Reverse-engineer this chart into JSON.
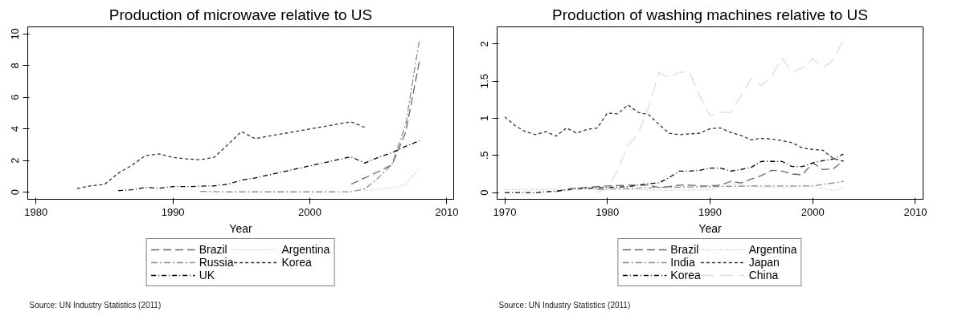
{
  "chart_data": [
    {
      "type": "line",
      "title": "Production of microwave relative to US",
      "xlabel": "Year",
      "annotations": [
        "Source: UN Industry Statistics (2011)"
      ],
      "legend": "bottom",
      "grid": false,
      "marker": "none",
      "xlim": [
        1979.4,
        2010.5
      ],
      "xticks": [
        1980,
        1990,
        2000,
        2010
      ],
      "ylim": [
        -0.45,
        10.45
      ],
      "yticks": [
        0,
        2,
        4,
        6,
        8,
        10
      ],
      "series": [
        {
          "name": "Brazil",
          "color": "#666666",
          "line_style": "dashed",
          "x": [
            2003,
            2004,
            2005,
            2006,
            2007,
            2008
          ],
          "values": [
            0.5,
            0.9,
            1.3,
            1.74,
            3.8,
            8.3
          ]
        },
        {
          "name": "Russia",
          "color": "#8c8c8c",
          "line_style": "dashdot",
          "x": [
            1992,
            1994,
            1996,
            1998,
            2000,
            2002,
            2003,
            2004,
            2005,
            2006,
            2007,
            2008
          ],
          "values": [
            0.05,
            0.02,
            0.02,
            0.02,
            0.02,
            0.02,
            0.03,
            0.2,
            0.9,
            1.78,
            4.3,
            9.66
          ]
        },
        {
          "name": "UK",
          "color": "#000000",
          "line_style": "dashdotdot",
          "x": [
            1986,
            1987,
            1988,
            1989,
            1990,
            1991,
            1992,
            1993,
            1994,
            1995,
            1996,
            2003,
            2004,
            2005,
            2006,
            2007,
            2008
          ],
          "values": [
            0.1,
            0.15,
            0.3,
            0.25,
            0.35,
            0.35,
            0.38,
            0.4,
            0.5,
            0.76,
            0.9,
            2.24,
            1.84,
            2.2,
            2.5,
            2.9,
            3.25
          ]
        },
        {
          "name": "Argentina",
          "color": "#c0c0c0",
          "line_style": "dotted",
          "x": [
            2004,
            2005,
            2006,
            2007,
            2008
          ],
          "values": [
            0.1,
            0.2,
            0.25,
            0.5,
            1.5
          ]
        },
        {
          "name": "Korea",
          "color": "#333333",
          "line_style": "shortdash",
          "x": [
            1983,
            1984,
            1985,
            1986,
            1987,
            1988,
            1989,
            1990,
            1991,
            1992,
            1993,
            1994,
            1995,
            1996,
            2003,
            2004
          ],
          "values": [
            0.23,
            0.4,
            0.49,
            1.19,
            1.7,
            2.31,
            2.42,
            2.2,
            2.1,
            2.05,
            2.2,
            3.0,
            3.83,
            3.39,
            4.45,
            4.1
          ]
        }
      ]
    },
    {
      "type": "line",
      "title": "Production of washing machines relative to US",
      "xlabel": "Year",
      "annotations": [
        "Source: UN Industry Statistics (2011)"
      ],
      "legend": "bottom",
      "grid": false,
      "marker": "none",
      "xlim": [
        1969.25,
        2010.75
      ],
      "xticks": [
        1970,
        1980,
        1990,
        2000,
        2010
      ],
      "ylim": [
        -0.09,
        2.23
      ],
      "yticks": [
        0,
        {
          "value": 0.5,
          "label": ".5"
        },
        1,
        1.5,
        2
      ],
      "series": [
        {
          "name": "Brazil",
          "color": "#666666",
          "line_style": "dashed",
          "x": [
            1975,
            1976,
            1978,
            1980,
            1982,
            1984,
            1985,
            1986,
            1987,
            1988,
            1989,
            1990,
            1991,
            1992,
            1993,
            1994,
            1995,
            1996,
            1997,
            1998,
            1999,
            2000,
            2001,
            2002,
            2003
          ],
          "values": [
            0.01,
            0.05,
            0.07,
            0.09,
            0.1,
            0.1,
            0.07,
            0.08,
            0.1,
            0.1,
            0.09,
            0.09,
            0.1,
            0.15,
            0.13,
            0.18,
            0.23,
            0.3,
            0.29,
            0.25,
            0.24,
            0.4,
            0.31,
            0.32,
            0.43
          ]
        },
        {
          "name": "India",
          "color": "#8c8c8c",
          "line_style": "dashdot",
          "x": [
            1979,
            1985,
            1990,
            1995,
            2000,
            2003
          ],
          "values": [
            0.04,
            0.07,
            0.08,
            0.09,
            0.09,
            0.15
          ]
        },
        {
          "name": "Korea",
          "color": "#000000",
          "line_style": "dashdotdot",
          "x": [
            1970,
            1973,
            1975,
            1977,
            1980,
            1982,
            1984,
            1985,
            1986,
            1987,
            1988,
            1989,
            1990,
            1991,
            1992,
            1993,
            1994,
            1995,
            1996,
            1997,
            1998,
            1999,
            2000,
            2001,
            2002,
            2003
          ],
          "values": [
            0,
            0,
            0.02,
            0.05,
            0.07,
            0.08,
            0.12,
            0.13,
            0.2,
            0.29,
            0.29,
            0.3,
            0.33,
            0.33,
            0.29,
            0.31,
            0.34,
            0.42,
            0.42,
            0.42,
            0.35,
            0.35,
            0.4,
            0.43,
            0.45,
            0.52
          ]
        },
        {
          "name": "Argentina",
          "color": "#c0c0c0",
          "line_style": "dotted",
          "x": [
            1970,
            1975,
            1980,
            1985,
            1990,
            1992,
            1995,
            2000,
            2002,
            2003
          ],
          "values": [
            0.04,
            0.04,
            0.05,
            0.03,
            0.04,
            0.12,
            0.07,
            0.08,
            0.03,
            0.06
          ]
        },
        {
          "name": "Japan",
          "color": "#333333",
          "line_style": "shortdash",
          "x": [
            1970,
            1971,
            1972,
            1973,
            1974,
            1975,
            1976,
            1977,
            1978,
            1979,
            1980,
            1981,
            1982,
            1983,
            1984,
            1985,
            1986,
            1987,
            1988,
            1989,
            1990,
            1991,
            1992,
            1993,
            1994,
            1995,
            1996,
            1997,
            1998,
            1999,
            2000,
            2001,
            2002,
            2003
          ],
          "values": [
            1.02,
            0.9,
            0.82,
            0.78,
            0.82,
            0.76,
            0.87,
            0.8,
            0.85,
            0.87,
            1.07,
            1.06,
            1.18,
            1.08,
            1.05,
            0.92,
            0.8,
            0.78,
            0.79,
            0.8,
            0.86,
            0.87,
            0.81,
            0.77,
            0.71,
            0.73,
            0.72,
            0.7,
            0.67,
            0.6,
            0.58,
            0.57,
            0.46,
            0.42
          ]
        },
        {
          "name": "China",
          "color": "#dcdcdc",
          "line_style": "longdash",
          "x": [
            1979,
            1980,
            1981,
            1982,
            1983,
            1984,
            1985,
            1986,
            1987,
            1988,
            1989,
            1990,
            1991,
            1992,
            1993,
            1994,
            1995,
            1996,
            1997,
            1998,
            1999,
            2000,
            2001,
            2002,
            2003
          ],
          "values": [
            0,
            0.05,
            0.3,
            0.63,
            0.8,
            1.14,
            1.61,
            1.55,
            1.62,
            1.62,
            1.3,
            1.03,
            1.08,
            1.08,
            1.3,
            1.54,
            1.44,
            1.57,
            1.81,
            1.62,
            1.68,
            1.8,
            1.68,
            1.78,
            2.06
          ]
        }
      ]
    }
  ]
}
